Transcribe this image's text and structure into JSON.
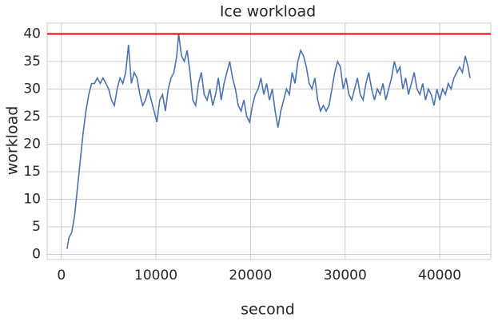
{
  "chart_data": {
    "type": "line",
    "title": "Ice workload",
    "x_label": "second",
    "y_label": "workload",
    "x": [
      600,
      800,
      1100,
      1400,
      1700,
      2000,
      2300,
      2600,
      2900,
      3200,
      3500,
      3800,
      4100,
      4400,
      4700,
      5000,
      5300,
      5600,
      5900,
      6200,
      6500,
      6800,
      7100,
      7400,
      7700,
      8000,
      8300,
      8600,
      8900,
      9200,
      9500,
      9800,
      10100,
      10400,
      10700,
      11000,
      11300,
      11600,
      11900,
      12200,
      12400,
      12700,
      13000,
      13300,
      13600,
      13900,
      14200,
      14500,
      14800,
      15100,
      15400,
      15700,
      16000,
      16300,
      16600,
      16900,
      17200,
      17500,
      17800,
      18100,
      18400,
      18700,
      19000,
      19300,
      19600,
      19900,
      20200,
      20500,
      20800,
      21100,
      21400,
      21700,
      22000,
      22300,
      22600,
      22900,
      23200,
      23500,
      23800,
      24100,
      24400,
      24700,
      25000,
      25300,
      25600,
      25900,
      26200,
      26500,
      26800,
      27100,
      27400,
      27700,
      28000,
      28300,
      28600,
      28900,
      29200,
      29500,
      29800,
      30100,
      30400,
      30700,
      31000,
      31300,
      31600,
      31900,
      32200,
      32500,
      32800,
      33100,
      33400,
      33700,
      34000,
      34300,
      34600,
      34900,
      35200,
      35500,
      35800,
      36100,
      36400,
      36700,
      37000,
      37300,
      37600,
      37900,
      38200,
      38500,
      38800,
      39100,
      39400,
      39700,
      40000,
      40300,
      40600,
      40900,
      41200,
      41500,
      41800,
      42100,
      42400,
      42700,
      43000,
      43200
    ],
    "series": [
      {
        "color": "#4c72b0",
        "values": [
          1,
          3,
          4,
          7,
          12,
          17,
          22,
          26,
          29,
          31,
          31,
          32,
          31,
          32,
          31,
          30,
          28,
          27,
          30,
          32,
          31,
          33,
          38,
          31,
          33,
          32,
          29,
          27,
          28,
          30,
          28,
          26,
          24,
          28,
          29,
          26,
          30,
          32,
          33,
          36,
          40,
          36,
          35,
          37,
          33,
          28,
          27,
          31,
          33,
          29,
          28,
          30,
          27,
          29,
          32,
          28,
          31,
          33,
          35,
          32,
          30,
          27,
          26,
          28,
          25,
          24,
          27,
          29,
          30,
          32,
          29,
          31,
          28,
          30,
          26,
          23,
          26,
          28,
          30,
          29,
          33,
          31,
          35,
          37,
          36,
          34,
          31,
          30,
          32,
          28,
          26,
          27,
          26,
          27,
          30,
          33,
          35,
          34,
          30,
          32,
          29,
          28,
          30,
          32,
          29,
          28,
          31,
          33,
          30,
          28,
          30,
          29,
          31,
          28,
          30,
          32,
          35,
          33,
          34,
          30,
          32,
          29,
          31,
          33,
          30,
          29,
          31,
          28,
          30,
          29,
          27,
          30,
          28,
          30,
          29,
          31,
          30,
          32,
          33,
          34,
          33,
          36,
          34,
          32
        ]
      }
    ],
    "hline": {
      "value": 40,
      "color": "#e8000b"
    },
    "xlim": [
      -1500,
      45400
    ],
    "ylim": [
      -0.95,
      41.95
    ],
    "xticks": [
      0,
      10000,
      20000,
      30000,
      40000
    ],
    "yticks": [
      0,
      5,
      10,
      15,
      20,
      25,
      30,
      35,
      40
    ],
    "grid": true
  }
}
